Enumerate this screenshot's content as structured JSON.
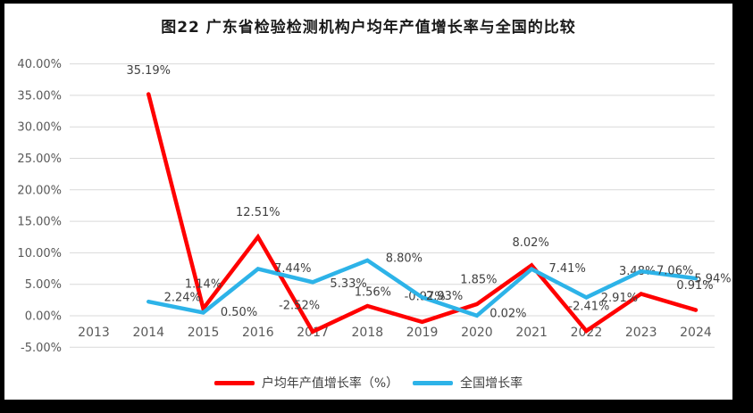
{
  "title": "图22  广东省检验检测机构户均年产值增长率与全国的比较",
  "chart_data": {
    "type": "line",
    "title": "图22  广东省检验检测机构户均年产值增长率与全国的比较",
    "x": [
      "2013",
      "2014",
      "2015",
      "2016",
      "2017",
      "2018",
      "2019",
      "2020",
      "2021",
      "2022",
      "2023",
      "2024"
    ],
    "series": [
      {
        "name": "户均年产值增长率（%）",
        "color": "#FF0000",
        "values": [
          null,
          35.19,
          1.14,
          12.51,
          -2.52,
          1.56,
          -0.97,
          1.85,
          8.02,
          -2.41,
          3.48,
          0.91
        ]
      },
      {
        "name": "全国增长率",
        "color": "#2DB3E8",
        "values": [
          null,
          2.24,
          0.5,
          7.44,
          5.33,
          8.8,
          2.93,
          0.02,
          7.41,
          2.91,
          7.06,
          5.94
        ]
      }
    ],
    "ylim": [
      -5,
      40
    ],
    "ytick_step": 5,
    "ytick_labels": [
      "40.00%",
      "35.00%",
      "30.00%",
      "25.00%",
      "20.00%",
      "15.00%",
      "10.00%",
      "5.00%",
      "0.00%",
      "-5.00%"
    ],
    "value_label_format": "0.00%",
    "grid": true,
    "gridline_color": "#D9D9D9",
    "axis_label_color": "#595959",
    "data_label_color": "#404040",
    "legend_position": "bottom"
  }
}
